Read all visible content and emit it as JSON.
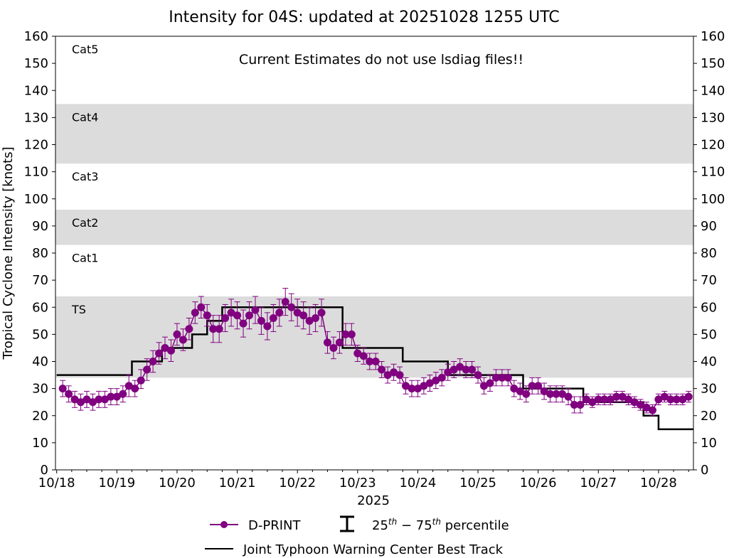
{
  "colors": {
    "dprint": "#800080",
    "best_track": "#000000",
    "band": "#dcdcdc",
    "axis": "#000000"
  },
  "chart_data": {
    "type": "line",
    "title": "Intensity for 04S: updated at 20251028 1255 UTC",
    "annotation": "Current Estimates do not use lsdiag files!!",
    "xlabel": "2025",
    "ylabel": "Tropical Cyclone Intensity [knots]",
    "x_unit": "days since 2025-10-18 00 UTC",
    "xlim": [
      -0.02,
      10.58
    ],
    "ylim": [
      0,
      160
    ],
    "xticks": [
      {
        "label": "10/18",
        "value": 0
      },
      {
        "label": "10/19",
        "value": 1
      },
      {
        "label": "10/20",
        "value": 2
      },
      {
        "label": "10/21",
        "value": 3
      },
      {
        "label": "10/22",
        "value": 4
      },
      {
        "label": "10/23",
        "value": 5
      },
      {
        "label": "10/24",
        "value": 6
      },
      {
        "label": "10/25",
        "value": 7
      },
      {
        "label": "10/26",
        "value": 8
      },
      {
        "label": "10/27",
        "value": 9
      },
      {
        "label": "10/28",
        "value": 10
      }
    ],
    "yticks": [
      {
        "label": "0",
        "value": 0
      },
      {
        "label": "10",
        "value": 10
      },
      {
        "label": "20",
        "value": 20
      },
      {
        "label": "30",
        "value": 30
      },
      {
        "label": "40",
        "value": 40
      },
      {
        "label": "50",
        "value": 50
      },
      {
        "label": "60",
        "value": 60
      },
      {
        "label": "70",
        "value": 70
      },
      {
        "label": "80",
        "value": 80
      },
      {
        "label": "90",
        "value": 90
      },
      {
        "label": "100",
        "value": 100
      },
      {
        "label": "110",
        "value": 110
      },
      {
        "label": "120",
        "value": 120
      },
      {
        "label": "130",
        "value": 130
      },
      {
        "label": "140",
        "value": 140
      },
      {
        "label": "150",
        "value": 150
      },
      {
        "label": "160",
        "value": 160
      }
    ],
    "category_bands": [
      {
        "label": "TS",
        "y0": 34,
        "y1": 64,
        "shaded": true
      },
      {
        "label": "Cat1",
        "y0": 64,
        "y1": 83,
        "shaded": false
      },
      {
        "label": "Cat2",
        "y0": 83,
        "y1": 96,
        "shaded": true
      },
      {
        "label": "Cat3",
        "y0": 96,
        "y1": 113,
        "shaded": false
      },
      {
        "label": "Cat4",
        "y0": 113,
        "y1": 135,
        "shaded": true
      },
      {
        "label": "Cat5",
        "y0": 135,
        "y1": 160,
        "shaded": false
      }
    ],
    "legend": {
      "dprint": "D-PRINT",
      "percentile": "25th − 75th percentile",
      "best_track": "Joint Typhoon Warning Center Best Track"
    },
    "series": [
      {
        "name": "Joint Typhoon Warning Center Best Track",
        "type": "step",
        "x": [
          0.0,
          1.0,
          1.25,
          1.5,
          1.75,
          2.0,
          2.25,
          2.5,
          2.75,
          3.0,
          3.25,
          3.5,
          3.75,
          4.0,
          4.25,
          4.5,
          4.75,
          5.0,
          5.25,
          5.5,
          5.75,
          6.0,
          6.25,
          6.5,
          6.75,
          7.0,
          7.25,
          7.5,
          7.75,
          8.0,
          8.25,
          8.5,
          8.75,
          9.0,
          9.25,
          9.5,
          9.75,
          10.0,
          10.25,
          10.5
        ],
        "values": [
          35,
          35,
          40,
          40,
          45,
          45,
          50,
          55,
          60,
          60,
          60,
          60,
          60,
          60,
          60,
          60,
          45,
          45,
          45,
          45,
          40,
          40,
          40,
          35,
          35,
          35,
          35,
          35,
          30,
          30,
          30,
          30,
          25,
          25,
          25,
          25,
          20,
          15,
          15,
          15
        ]
      },
      {
        "name": "D-PRINT",
        "type": "errorbar",
        "x": [
          0.1,
          0.2,
          0.3,
          0.4,
          0.5,
          0.6,
          0.7,
          0.8,
          0.9,
          1.0,
          1.1,
          1.2,
          1.3,
          1.4,
          1.5,
          1.6,
          1.7,
          1.8,
          1.9,
          2.0,
          2.1,
          2.2,
          2.3,
          2.4,
          2.5,
          2.6,
          2.7,
          2.8,
          2.9,
          3.0,
          3.1,
          3.2,
          3.3,
          3.4,
          3.5,
          3.6,
          3.7,
          3.8,
          3.9,
          4.0,
          4.1,
          4.2,
          4.3,
          4.4,
          4.5,
          4.6,
          4.7,
          4.8,
          4.9,
          5.0,
          5.1,
          5.2,
          5.3,
          5.4,
          5.5,
          5.6,
          5.7,
          5.8,
          5.9,
          6.0,
          6.1,
          6.2,
          6.3,
          6.4,
          6.5,
          6.6,
          6.7,
          6.8,
          6.9,
          7.0,
          7.1,
          7.2,
          7.3,
          7.4,
          7.5,
          7.6,
          7.7,
          7.8,
          7.9,
          8.0,
          8.1,
          8.2,
          8.3,
          8.4,
          8.5,
          8.6,
          8.7,
          8.8,
          8.9,
          9.0,
          9.1,
          9.2,
          9.3,
          9.4,
          9.5,
          9.6,
          9.7,
          9.8,
          9.9,
          10.0,
          10.1,
          10.2,
          10.3,
          10.4,
          10.5
        ],
        "values": [
          30,
          28,
          26,
          25,
          26,
          25,
          26,
          26,
          27,
          27,
          28,
          31,
          30,
          33,
          37,
          40,
          43,
          45,
          44,
          50,
          48,
          52,
          58,
          60,
          57,
          52,
          52,
          56,
          58,
          57,
          54,
          57,
          59,
          55,
          53,
          56,
          58,
          62,
          60,
          58,
          57,
          55,
          56,
          58,
          47,
          45,
          47,
          50,
          50,
          43,
          42,
          40,
          40,
          37,
          35,
          36,
          35,
          31,
          30,
          30,
          31,
          32,
          33,
          34,
          36,
          37,
          38,
          37,
          37,
          35,
          31,
          32,
          34,
          34,
          34,
          30,
          29,
          28,
          31,
          31,
          29,
          28,
          28,
          28,
          27,
          24,
          24,
          26,
          25,
          26,
          26,
          26,
          27,
          27,
          26,
          25,
          24,
          23,
          22,
          26,
          27,
          26,
          26,
          26,
          27
        ],
        "p25": [
          27,
          25,
          23,
          22,
          23,
          22,
          23,
          23,
          24,
          24,
          25,
          27,
          27,
          30,
          33,
          36,
          39,
          41,
          40,
          46,
          44,
          48,
          54,
          56,
          53,
          47,
          47,
          51,
          53,
          52,
          49,
          52,
          54,
          50,
          48,
          51,
          53,
          57,
          55,
          53,
          52,
          50,
          51,
          53,
          43,
          41,
          43,
          46,
          46,
          40,
          39,
          37,
          37,
          34,
          32,
          33,
          32,
          28,
          27,
          27,
          28,
          29,
          30,
          31,
          33,
          34,
          35,
          34,
          34,
          32,
          28,
          29,
          31,
          31,
          31,
          27,
          26,
          25,
          28,
          28,
          26,
          25,
          25,
          25,
          24,
          21,
          21,
          24,
          23,
          24,
          24,
          24,
          25,
          25,
          24,
          23,
          22,
          21,
          20,
          24,
          25,
          24,
          24,
          24,
          25
        ],
        "p75": [
          33,
          31,
          29,
          28,
          29,
          28,
          29,
          29,
          30,
          30,
          31,
          35,
          33,
          37,
          41,
          44,
          47,
          49,
          48,
          54,
          52,
          56,
          62,
          64,
          61,
          57,
          57,
          61,
          63,
          62,
          59,
          62,
          64,
          60,
          58,
          61,
          63,
          67,
          65,
          63,
          62,
          60,
          61,
          63,
          51,
          49,
          51,
          54,
          54,
          46,
          45,
          43,
          43,
          40,
          38,
          39,
          38,
          34,
          33,
          33,
          34,
          35,
          36,
          37,
          39,
          40,
          41,
          40,
          40,
          38,
          34,
          35,
          37,
          37,
          37,
          33,
          32,
          31,
          34,
          34,
          32,
          31,
          31,
          31,
          30,
          27,
          27,
          28,
          27,
          28,
          28,
          28,
          29,
          29,
          28,
          27,
          26,
          25,
          24,
          28,
          29,
          28,
          28,
          28,
          29
        ]
      }
    ]
  }
}
